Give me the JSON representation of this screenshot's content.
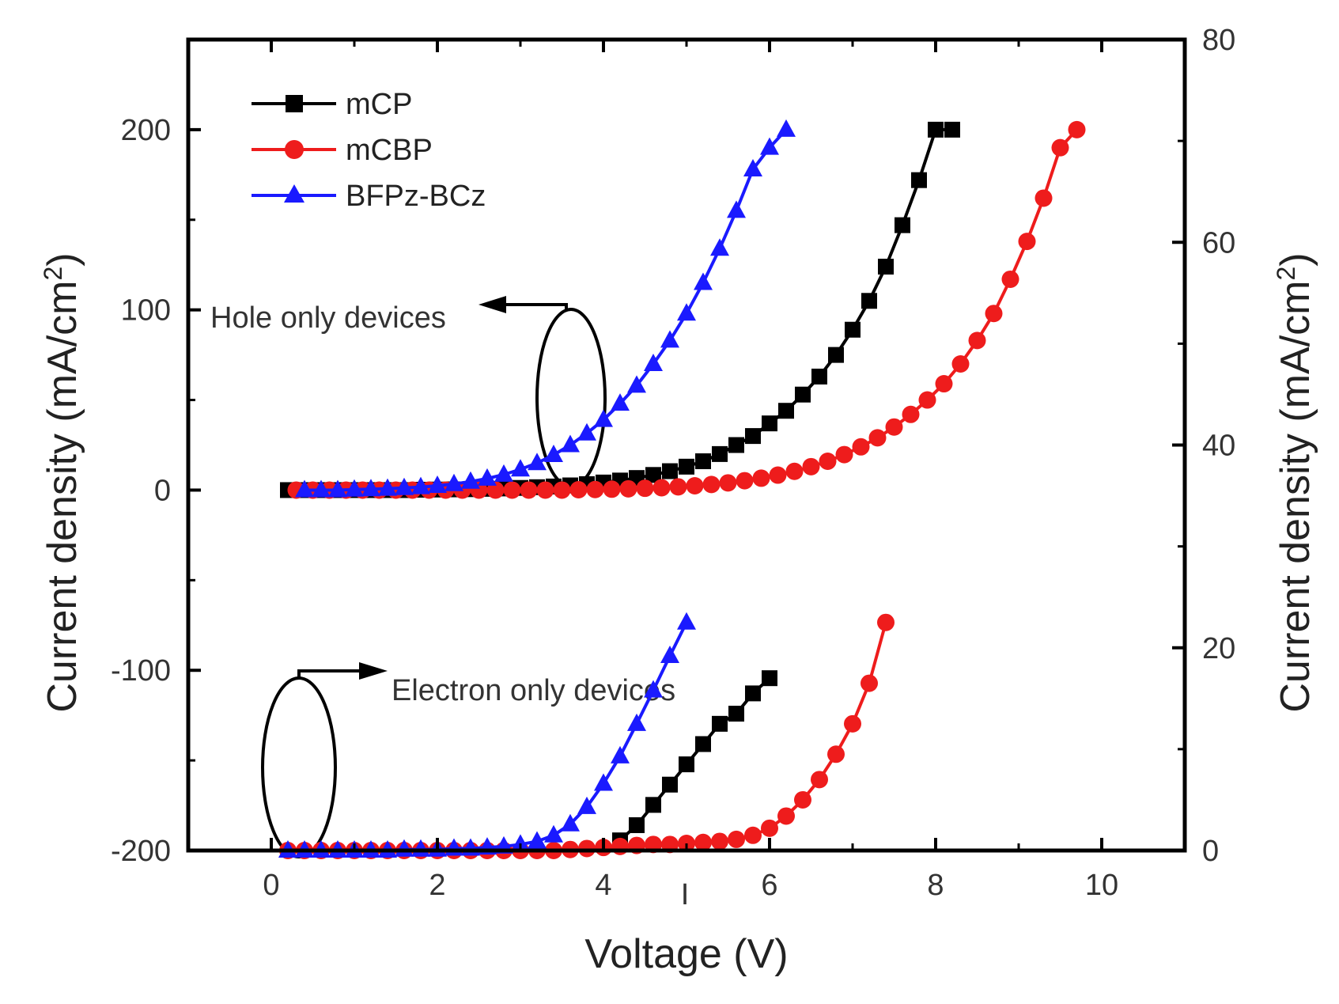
{
  "chart_data": {
    "type": "scatter",
    "xlabel": "Voltage (V)",
    "ylabel_left": "Current density (mA/cm",
    "ylabel_right": "Current density (mA/cm",
    "ylabel_superscript": "2",
    "ylabel_close": ")",
    "xlim": [
      -1,
      11
    ],
    "ylim_left": [
      -200,
      250
    ],
    "ylim_right": [
      0,
      80
    ],
    "x_ticks": [
      "0",
      "2",
      "4",
      "6",
      "8",
      "10"
    ],
    "y_left_ticks": [
      "200",
      "100",
      "0",
      "-100",
      "-200"
    ],
    "y_right_ticks": [
      "80",
      "60",
      "40",
      "20",
      "0"
    ],
    "stray_mark": "I",
    "annotations": {
      "hole": "Hole only devices",
      "electron": "Electron only devices"
    },
    "series": [
      {
        "name": "mCP",
        "group": "hole",
        "axis": "left",
        "color": "#000000",
        "marker": "square",
        "x": [
          0.2,
          0.4,
          0.6,
          0.8,
          1.0,
          1.2,
          1.4,
          1.6,
          1.8,
          2.0,
          2.2,
          2.4,
          2.6,
          2.8,
          3.0,
          3.2,
          3.4,
          3.6,
          3.8,
          4.0,
          4.2,
          4.4,
          4.6,
          4.8,
          5.0,
          5.2,
          5.4,
          5.6,
          5.8,
          6.0,
          6.2,
          6.4,
          6.6,
          6.8,
          7.0,
          7.2,
          7.4,
          7.6,
          7.8,
          8.0,
          8.2
        ],
        "y": [
          0,
          0,
          0,
          0,
          0,
          0,
          0,
          0,
          0.2,
          0.3,
          0.4,
          0.5,
          0.7,
          0.9,
          1.2,
          1.6,
          2,
          2.6,
          3.3,
          4.2,
          5.3,
          6.7,
          8.4,
          10.5,
          13,
          16,
          20,
          25,
          30,
          37,
          44,
          53,
          63,
          75,
          89,
          105,
          124,
          147,
          172,
          200,
          200
        ]
      },
      {
        "name": "mCBP",
        "group": "hole",
        "axis": "left",
        "color": "#ee1c1c",
        "marker": "circle",
        "x": [
          0.3,
          0.5,
          0.7,
          0.9,
          1.1,
          1.3,
          1.5,
          1.7,
          1.9,
          2.1,
          2.3,
          2.5,
          2.7,
          2.9,
          3.1,
          3.3,
          3.5,
          3.7,
          3.9,
          4.1,
          4.3,
          4.5,
          4.7,
          4.9,
          5.1,
          5.3,
          5.5,
          5.7,
          5.9,
          6.1,
          6.3,
          6.5,
          6.7,
          6.9,
          7.1,
          7.3,
          7.5,
          7.7,
          7.9,
          8.1,
          8.3,
          8.5,
          8.7,
          8.9,
          9.1,
          9.3,
          9.5,
          9.7
        ],
        "y": [
          0,
          0,
          0,
          0,
          0,
          0,
          0,
          0,
          0,
          0,
          0,
          0,
          0,
          0,
          0,
          0,
          0,
          0.2,
          0.3,
          0.5,
          0.7,
          1,
          1.3,
          1.8,
          2.4,
          3.1,
          4,
          5.2,
          6.6,
          8.3,
          10.4,
          13,
          16,
          19.7,
          24,
          29,
          35,
          42,
          50,
          59,
          70,
          83,
          98,
          117,
          138,
          162,
          190,
          200
        ]
      },
      {
        "name": "BFPz-BCz",
        "group": "hole",
        "axis": "left",
        "color": "#1a1aff",
        "marker": "triangle",
        "x": [
          0.4,
          0.6,
          0.8,
          1.0,
          1.2,
          1.4,
          1.6,
          1.8,
          2.0,
          2.2,
          2.4,
          2.6,
          2.8,
          3.0,
          3.2,
          3.4,
          3.6,
          3.8,
          4.0,
          4.2,
          4.4,
          4.6,
          4.8,
          5.0,
          5.2,
          5.4,
          5.6,
          5.8,
          6.0,
          6.2
        ],
        "y": [
          0,
          0,
          0,
          0.3,
          0.5,
          0.8,
          1.2,
          1.7,
          2.4,
          3.4,
          4.7,
          6.4,
          8.6,
          11.5,
          15,
          19.5,
          25,
          31.5,
          39,
          48,
          58,
          70,
          83,
          98,
          115,
          134,
          155,
          178,
          190,
          200
        ]
      },
      {
        "name": "mCP",
        "group": "electron",
        "axis": "right",
        "color": "#000000",
        "marker": "square",
        "x": [
          4.2,
          4.4,
          4.6,
          4.8,
          5.0,
          5.2,
          5.4,
          5.6,
          5.8,
          6.0
        ],
        "y": [
          1,
          2.5,
          4.5,
          6.5,
          8.5,
          10.5,
          12.5,
          13.5,
          15.5,
          17
        ]
      },
      {
        "name": "mCBP",
        "group": "electron",
        "axis": "right",
        "color": "#ee1c1c",
        "marker": "circle",
        "x": [
          0.2,
          0.4,
          0.6,
          0.8,
          1.0,
          1.2,
          1.4,
          1.6,
          1.8,
          2.0,
          2.2,
          2.4,
          2.6,
          2.8,
          3.0,
          3.2,
          3.4,
          3.6,
          3.8,
          4.0,
          4.2,
          4.4,
          4.6,
          4.8,
          5.0,
          5.2,
          5.4,
          5.6,
          5.8,
          6.0,
          6.2,
          6.4,
          6.6,
          6.8,
          7.0,
          7.2,
          7.4
        ],
        "y": [
          0,
          0,
          0,
          0,
          0,
          0,
          0,
          0,
          0,
          0,
          0,
          0,
          0,
          0,
          0,
          0,
          0,
          0.1,
          0.2,
          0.3,
          0.4,
          0.5,
          0.6,
          0.6,
          0.7,
          0.8,
          0.9,
          1.1,
          1.5,
          2.2,
          3.4,
          5,
          7,
          9.5,
          12.5,
          16.5,
          22.5
        ]
      },
      {
        "name": "BFPz-BCz",
        "group": "electron",
        "axis": "right",
        "color": "#1a1aff",
        "marker": "triangle",
        "x": [
          0.2,
          0.4,
          0.6,
          0.8,
          1.0,
          1.2,
          1.4,
          1.6,
          1.8,
          2.0,
          2.2,
          2.4,
          2.6,
          2.8,
          3.0,
          3.2,
          3.4,
          3.6,
          3.8,
          4.0,
          4.2,
          4.4,
          4.6,
          4.8,
          5.0
        ],
        "y": [
          0,
          0,
          0,
          0,
          0,
          0,
          0,
          0.1,
          0.1,
          0.1,
          0.2,
          0.2,
          0.3,
          0.4,
          0.6,
          0.9,
          1.5,
          2.6,
          4.3,
          6.6,
          9.3,
          12.5,
          15.8,
          19.2,
          22.5
        ]
      }
    ],
    "legend": [
      {
        "label": "mCP",
        "color": "#000000",
        "marker": "square"
      },
      {
        "label": "mCBP",
        "color": "#ee1c1c",
        "marker": "circle"
      },
      {
        "label": "BFPz-BCz",
        "color": "#1a1aff",
        "marker": "triangle"
      }
    ],
    "legend_position": "top-left"
  }
}
